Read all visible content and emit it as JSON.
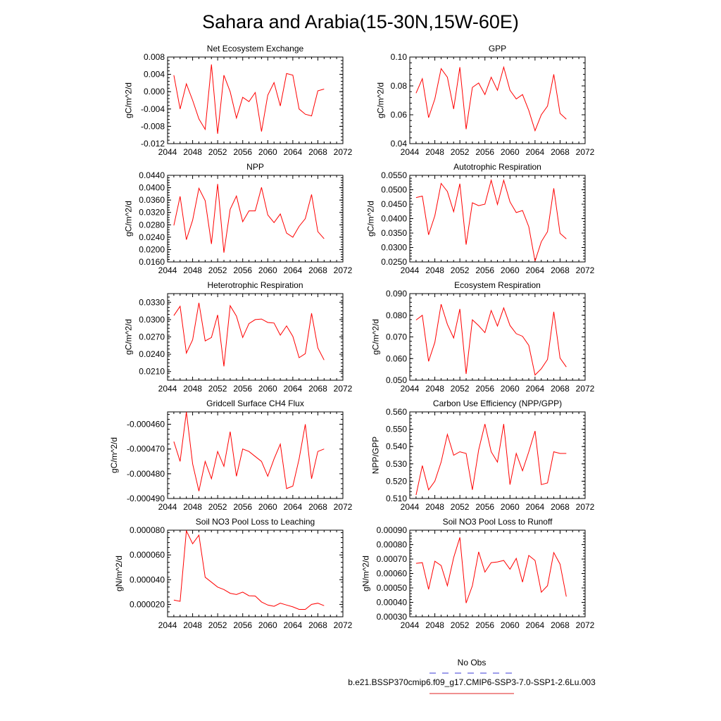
{
  "page_title": "Sahara and Arabia(15-30N,15W-60E)",
  "legend": [
    {
      "label": "No Obs",
      "color": "#3b3bd6",
      "style": "dashed"
    },
    {
      "label": "b.e21.BSSP370cmip6.f09_g17.CMIP6-SSP3-7.0-SSP1-2.6Lu.003",
      "color": "#e02020",
      "style": "solid"
    }
  ],
  "line_color": "#ff0000",
  "chart_data": [
    {
      "type": "line",
      "title": "Net Ecosystem Exchange",
      "ylabel": "gC/m^2/d",
      "xlim": [
        2044,
        2072
      ],
      "xticks": [
        2044,
        2048,
        2052,
        2056,
        2060,
        2064,
        2068,
        2072
      ],
      "ylim": [
        -0.012,
        0.008
      ],
      "yticks": [
        "-0.012",
        "-0.008",
        "-0.004",
        "0.000",
        "0.004",
        "0.008"
      ],
      "x": [
        2045,
        2046,
        2047,
        2048,
        2049,
        2050,
        2051,
        2052,
        2053,
        2054,
        2055,
        2056,
        2057,
        2058,
        2059,
        2060,
        2061,
        2062,
        2063,
        2064,
        2065,
        2066,
        2067,
        2068,
        2069
      ],
      "series": [
        {
          "values": [
            0.0038,
            -0.004,
            0.0018,
            -0.002,
            -0.0063,
            -0.0087,
            0.0063,
            -0.0097,
            0.0038,
            0.0,
            -0.0061,
            -0.0013,
            -0.0023,
            -0.0002,
            -0.0092,
            -0.0008,
            0.0021,
            -0.0033,
            0.0042,
            0.0038,
            -0.004,
            -0.0052,
            -0.0056,
            0.0002,
            0.0006
          ]
        }
      ]
    },
    {
      "type": "line",
      "title": "GPP",
      "ylabel": "gC/m^2/d",
      "xlim": [
        2044,
        2072
      ],
      "xticks": [
        2044,
        2048,
        2052,
        2056,
        2060,
        2064,
        2068,
        2072
      ],
      "ylim": [
        0.04,
        0.1
      ],
      "yticks": [
        "0.04",
        "0.06",
        "0.08",
        "0.10"
      ],
      "x": [
        2045,
        2046,
        2047,
        2048,
        2049,
        2050,
        2051,
        2052,
        2053,
        2054,
        2055,
        2056,
        2057,
        2058,
        2059,
        2060,
        2061,
        2062,
        2063,
        2064,
        2065,
        2066,
        2067,
        2068,
        2069
      ],
      "series": [
        {
          "values": [
            0.075,
            0.085,
            0.058,
            0.071,
            0.092,
            0.086,
            0.064,
            0.093,
            0.05,
            0.079,
            0.082,
            0.074,
            0.086,
            0.077,
            0.093,
            0.077,
            0.071,
            0.074,
            0.063,
            0.049,
            0.06,
            0.066,
            0.088,
            0.061,
            0.057
          ]
        }
      ]
    },
    {
      "type": "line",
      "title": "NPP",
      "ylabel": "gC/m^2/d",
      "xlim": [
        2044,
        2072
      ],
      "xticks": [
        2044,
        2048,
        2052,
        2056,
        2060,
        2064,
        2068,
        2072
      ],
      "ylim": [
        0.016,
        0.044
      ],
      "yticks": [
        "0.0160",
        "0.0200",
        "0.0240",
        "0.0280",
        "0.0320",
        "0.0360",
        "0.0400",
        "0.0440"
      ],
      "x": [
        2045,
        2046,
        2047,
        2048,
        2049,
        2050,
        2051,
        2052,
        2053,
        2054,
        2055,
        2056,
        2057,
        2058,
        2059,
        2060,
        2061,
        2062,
        2063,
        2064,
        2065,
        2066,
        2067,
        2068,
        2069
      ],
      "series": [
        {
          "values": [
            0.0278,
            0.0372,
            0.0232,
            0.0295,
            0.0398,
            0.0358,
            0.0218,
            0.0412,
            0.019,
            0.033,
            0.0373,
            0.029,
            0.0325,
            0.0325,
            0.0401,
            0.0312,
            0.0287,
            0.0315,
            0.0253,
            0.024,
            0.0275,
            0.03,
            0.0378,
            0.0258,
            0.0235
          ]
        }
      ]
    },
    {
      "type": "line",
      "title": "Autotrophic Respiration",
      "ylabel": "gC/m^2/d",
      "xlim": [
        2044,
        2072
      ],
      "xticks": [
        2044,
        2048,
        2052,
        2056,
        2060,
        2064,
        2068,
        2072
      ],
      "ylim": [
        0.025,
        0.055
      ],
      "yticks": [
        "0.0250",
        "0.0300",
        "0.0350",
        "0.0400",
        "0.0450",
        "0.0500",
        "0.0550"
      ],
      "x": [
        2045,
        2046,
        2047,
        2048,
        2049,
        2050,
        2051,
        2052,
        2053,
        2054,
        2055,
        2056,
        2057,
        2058,
        2059,
        2060,
        2061,
        2062,
        2063,
        2064,
        2065,
        2066,
        2067,
        2068,
        2069
      ],
      "series": [
        {
          "values": [
            0.0473,
            0.0478,
            0.0344,
            0.041,
            0.0522,
            0.0494,
            0.0424,
            0.0521,
            0.031,
            0.0455,
            0.0445,
            0.045,
            0.0533,
            0.0449,
            0.0533,
            0.0458,
            0.0421,
            0.0428,
            0.0372,
            0.0253,
            0.032,
            0.0355,
            0.0505,
            0.0349,
            0.033
          ]
        }
      ]
    },
    {
      "type": "line",
      "title": "Heterotrophic Respiration",
      "ylabel": "gC/m^2/d",
      "xlim": [
        2044,
        2072
      ],
      "xticks": [
        2044,
        2048,
        2052,
        2056,
        2060,
        2064,
        2068,
        2072
      ],
      "ylim": [
        0.0195,
        0.0345
      ],
      "yticks": [
        "0.0210",
        "0.0240",
        "0.0270",
        "0.0300",
        "0.0330"
      ],
      "x": [
        2045,
        2046,
        2047,
        2048,
        2049,
        2050,
        2051,
        2052,
        2053,
        2054,
        2055,
        2056,
        2057,
        2058,
        2059,
        2060,
        2061,
        2062,
        2063,
        2064,
        2065,
        2066,
        2067,
        2068,
        2069
      ],
      "series": [
        {
          "values": [
            0.0307,
            0.0323,
            0.0242,
            0.0265,
            0.0329,
            0.0263,
            0.0269,
            0.0308,
            0.0219,
            0.0324,
            0.0306,
            0.0269,
            0.0293,
            0.03,
            0.0301,
            0.0295,
            0.0294,
            0.0273,
            0.0289,
            0.0271,
            0.0234,
            0.0241,
            0.0311,
            0.0251,
            0.023
          ]
        }
      ]
    },
    {
      "type": "line",
      "title": "Ecosystem Respiration",
      "ylabel": "gC/m^2/d",
      "xlim": [
        2044,
        2072
      ],
      "xticks": [
        2044,
        2048,
        2052,
        2056,
        2060,
        2064,
        2068,
        2072
      ],
      "ylim": [
        0.05,
        0.09
      ],
      "yticks": [
        "0.050",
        "0.060",
        "0.070",
        "0.080",
        "0.090"
      ],
      "x": [
        2045,
        2046,
        2047,
        2048,
        2049,
        2050,
        2051,
        2052,
        2053,
        2054,
        2055,
        2056,
        2057,
        2058,
        2059,
        2060,
        2061,
        2062,
        2063,
        2064,
        2065,
        2066,
        2067,
        2068,
        2069
      ],
      "series": [
        {
          "values": [
            0.0778,
            0.08,
            0.0587,
            0.0675,
            0.0851,
            0.0758,
            0.0695,
            0.0829,
            0.0529,
            0.0779,
            0.0752,
            0.072,
            0.0822,
            0.075,
            0.0834,
            0.0753,
            0.0715,
            0.0703,
            0.0661,
            0.0524,
            0.0553,
            0.0596,
            0.0816,
            0.0602,
            0.0561
          ]
        }
      ]
    },
    {
      "type": "line",
      "title": "Gridcell Surface CH4 Flux",
      "ylabel": "gC/m^2/d",
      "xlim": [
        2044,
        2072
      ],
      "xticks": [
        2044,
        2048,
        2052,
        2056,
        2060,
        2064,
        2068,
        2072
      ],
      "ylim": [
        -0.00049,
        -0.000455
      ],
      "yticks": [
        "-0.000490",
        "-0.000480",
        "-0.000470",
        "-0.000460"
      ],
      "x": [
        2045,
        2046,
        2047,
        2048,
        2049,
        2050,
        2051,
        2052,
        2053,
        2054,
        2055,
        2056,
        2057,
        2058,
        2059,
        2060,
        2061,
        2062,
        2063,
        2064,
        2065,
        2066,
        2067,
        2068,
        2069
      ],
      "series": [
        {
          "values": [
            -0.000467,
            -0.000475,
            -0.000455,
            -0.000476,
            -0.000487,
            -0.000475,
            -0.000482,
            -0.000471,
            -0.000477,
            -0.000463,
            -0.000481,
            -0.00047,
            -0.000471,
            -0.000473,
            -0.000475,
            -0.000481,
            -0.000474,
            -0.000468,
            -0.000486,
            -0.000485,
            -0.000474,
            -0.00046,
            -0.000482,
            -0.000471,
            -0.00047
          ]
        }
      ]
    },
    {
      "type": "line",
      "title": "Carbon Use Efficiency (NPP/GPP)",
      "ylabel": "NPP/GPP",
      "xlim": [
        2044,
        2072
      ],
      "xticks": [
        2044,
        2048,
        2052,
        2056,
        2060,
        2064,
        2068,
        2072
      ],
      "ylim": [
        0.51,
        0.56
      ],
      "yticks": [
        "0.510",
        "0.520",
        "0.530",
        "0.540",
        "0.550",
        "0.560"
      ],
      "x": [
        2045,
        2046,
        2047,
        2048,
        2049,
        2050,
        2051,
        2052,
        2053,
        2054,
        2055,
        2056,
        2057,
        2058,
        2059,
        2060,
        2061,
        2062,
        2063,
        2064,
        2065,
        2066,
        2067,
        2068,
        2069
      ],
      "series": [
        {
          "values": [
            0.512,
            0.529,
            0.515,
            0.52,
            0.531,
            0.547,
            0.535,
            0.537,
            0.536,
            0.515,
            0.538,
            0.553,
            0.537,
            0.531,
            0.553,
            0.518,
            0.536,
            0.526,
            0.537,
            0.549,
            0.518,
            0.519,
            0.537,
            0.536,
            0.536
          ]
        }
      ]
    },
    {
      "type": "line",
      "title": "Soil NO3 Pool Loss to Leaching",
      "ylabel": "gN/m^2/d",
      "xlim": [
        2044,
        2072
      ],
      "xticks": [
        2044,
        2048,
        2052,
        2056,
        2060,
        2064,
        2068,
        2072
      ],
      "ylim": [
        1e-05,
        8e-05
      ],
      "yticks": [
        "0.000020",
        "0.000040",
        "0.000060",
        "0.000080"
      ],
      "x": [
        2045,
        2046,
        2047,
        2048,
        2049,
        2050,
        2051,
        2052,
        2053,
        2054,
        2055,
        2056,
        2057,
        2058,
        2059,
        2060,
        2061,
        2062,
        2063,
        2064,
        2065,
        2066,
        2067,
        2068,
        2069
      ],
      "series": [
        {
          "values": [
            2.35e-05,
            2.25e-05,
            7.95e-05,
            6.9e-05,
            7.6e-05,
            4.2e-05,
            3.8e-05,
            3.4e-05,
            3.2e-05,
            2.9e-05,
            2.8e-05,
            3e-05,
            2.7e-05,
            2.68e-05,
            2.2e-05,
            1.95e-05,
            1.85e-05,
            2.1e-05,
            1.95e-05,
            1.8e-05,
            1.6e-05,
            1.6e-05,
            2e-05,
            2.1e-05,
            1.9e-05
          ]
        }
      ]
    },
    {
      "type": "line",
      "title": "Soil NO3 Pool Loss to Runoff",
      "ylabel": "gN/m^2/d",
      "xlim": [
        2044,
        2072
      ],
      "xticks": [
        2044,
        2048,
        2052,
        2056,
        2060,
        2064,
        2068,
        2072
      ],
      "ylim": [
        0.0003,
        0.0009
      ],
      "yticks": [
        "0.00030",
        "0.00040",
        "0.00050",
        "0.00060",
        "0.00070",
        "0.00080",
        "0.00090"
      ],
      "x": [
        2045,
        2046,
        2047,
        2048,
        2049,
        2050,
        2051,
        2052,
        2053,
        2054,
        2055,
        2056,
        2057,
        2058,
        2059,
        2060,
        2061,
        2062,
        2063,
        2064,
        2065,
        2066,
        2067,
        2068,
        2069
      ],
      "series": [
        {
          "values": [
            0.00067,
            0.000675,
            0.00049,
            0.000685,
            0.000655,
            0.000515,
            0.00071,
            0.00085,
            0.000395,
            0.000515,
            0.00075,
            0.00061,
            0.000675,
            0.00068,
            0.00069,
            0.00063,
            0.000705,
            0.00054,
            0.000725,
            0.00069,
            0.00047,
            0.000515,
            0.000745,
            0.000665,
            0.00044
          ]
        }
      ]
    }
  ]
}
